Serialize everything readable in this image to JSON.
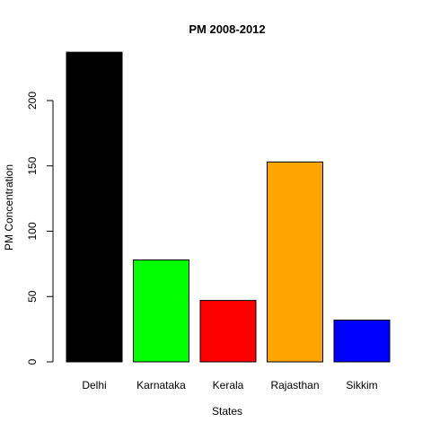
{
  "chart_data": {
    "type": "bar",
    "title": "PM 2008-2012",
    "xlabel": "States",
    "ylabel": "PM Concentration",
    "categories": [
      "Delhi",
      "Karnataka",
      "Kerala",
      "Rajasthan",
      "Sikkim"
    ],
    "values": [
      237,
      78,
      47,
      153,
      32
    ],
    "colors": [
      "#000000",
      "#00ff00",
      "#ff0000",
      "#ffa500",
      "#0000ff"
    ],
    "yticks": [
      0,
      50,
      100,
      150,
      200
    ],
    "ylim": [
      0,
      237
    ],
    "grid": false,
    "legend": "none"
  }
}
